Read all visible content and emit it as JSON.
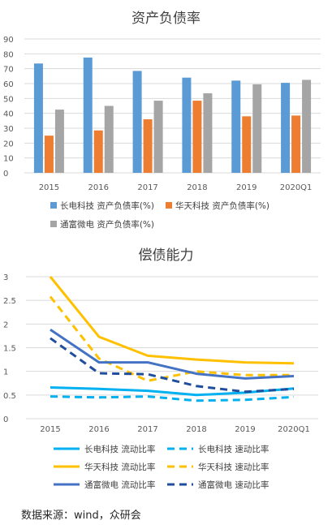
{
  "chart_data": [
    {
      "type": "bar",
      "title": "资产负债率",
      "categories": [
        "2015",
        "2016",
        "2017",
        "2018",
        "2019",
        "2020Q1"
      ],
      "ylim": [
        0,
        90
      ],
      "yticks": [
        0,
        10,
        20,
        30,
        40,
        50,
        60,
        70,
        80,
        90
      ],
      "grid": true,
      "legend_position": "bottom",
      "series": [
        {
          "name": "长电科技 资产负债率(%)",
          "color": "#5b9bd5",
          "values": [
            73.5,
            77.5,
            68.5,
            64.0,
            62.0,
            60.5
          ]
        },
        {
          "name": "华天科技 资产负债率(%)",
          "color": "#ed7d31",
          "values": [
            25.0,
            28.5,
            36.0,
            48.5,
            38.0,
            38.5
          ]
        },
        {
          "name": "通富微电 资产负债率(%)",
          "color": "#a5a5a5",
          "values": [
            42.5,
            45.0,
            48.5,
            53.5,
            59.5,
            62.5
          ]
        }
      ]
    },
    {
      "type": "line",
      "title": "偿债能力",
      "categories": [
        "2015",
        "2016",
        "2017",
        "2018",
        "2019",
        "2020Q1"
      ],
      "ylim": [
        0,
        3
      ],
      "yticks": [
        "0",
        "0.5",
        "1",
        "1.5",
        "2",
        "2.5",
        "3"
      ],
      "grid": true,
      "legend_position": "bottom",
      "series": [
        {
          "name": "长电科技 流动比率",
          "color": "#00b0f0",
          "dash": false,
          "values": [
            0.66,
            0.63,
            0.59,
            0.5,
            0.55,
            0.64
          ]
        },
        {
          "name": "长电科技 速动比率",
          "color": "#00b0f0",
          "dash": true,
          "values": [
            0.47,
            0.45,
            0.47,
            0.38,
            0.4,
            0.46
          ]
        },
        {
          "name": "华天科技 流动比率",
          "color": "#ffc000",
          "dash": false,
          "values": [
            3.0,
            1.73,
            1.33,
            1.25,
            1.19,
            1.17
          ]
        },
        {
          "name": "华天科技 速动比率",
          "color": "#ffc000",
          "dash": true,
          "values": [
            2.58,
            1.27,
            0.8,
            1.0,
            0.92,
            0.92
          ]
        },
        {
          "name": "通富微电 流动比率",
          "color": "#4472c4",
          "dash": false,
          "values": [
            1.88,
            1.19,
            1.19,
            0.95,
            0.85,
            0.9
          ]
        },
        {
          "name": "通富微电 速动比率",
          "color": "#1f4e9c",
          "dash": true,
          "values": [
            1.7,
            0.96,
            0.94,
            0.69,
            0.57,
            0.63
          ]
        }
      ]
    }
  ],
  "source": "数据来源：wind，众研会"
}
